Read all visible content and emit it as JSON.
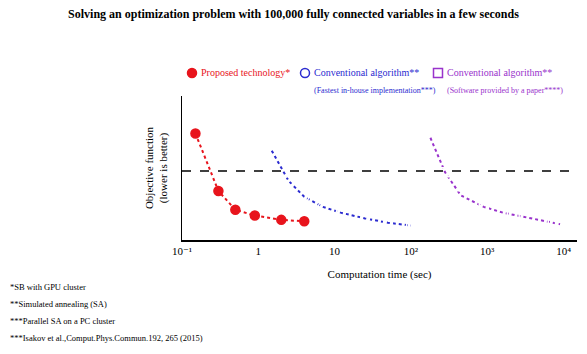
{
  "chart_data": {
    "type": "line",
    "title": "Solving an optimization problem with 100,000 fully connected variables in a few seconds",
    "x_label": "Computation time (sec)",
    "y_label": [
      "Objective function",
      "(lower is better)"
    ],
    "log": "x",
    "grid": false,
    "tick_labels": "x",
    "xlim": [
      0.1,
      15000
    ],
    "ylim": [
      0,
      100
    ],
    "xticks": [
      {
        "value": 0.1,
        "label": "10⁻¹"
      },
      1,
      10,
      {
        "value": 100,
        "label": "10²"
      },
      {
        "value": 1000,
        "label": "10³"
      },
      {
        "value": 10000,
        "label": "10⁴"
      }
    ],
    "series": [
      {
        "name": "Proposed technology*",
        "color": "#e8141c",
        "marker": "circle",
        "line_style": "dotted",
        "x": [
          0.15,
          0.3,
          0.5,
          0.9,
          2,
          4
        ],
        "values": [
          74,
          34,
          21,
          17,
          14,
          13
        ]
      },
      {
        "name": "Conventional algorithm**",
        "note": "(Fastest in-house implementation***)",
        "color": "#2b2bd0",
        "marker": "circle-open",
        "line_style": "dotted",
        "x": [
          1.5,
          2.5,
          4,
          7,
          12,
          25,
          50,
          100
        ],
        "values": [
          62,
          41,
          30,
          23,
          19,
          15,
          12,
          10
        ]
      },
      {
        "name": "Conventional algorithm**",
        "note": "(Software provided by a paper****)",
        "color": "#9933cc",
        "marker": "square-open",
        "line_style": "dotted",
        "x": [
          180,
          280,
          450,
          900,
          1600,
          3000,
          5500,
          9000
        ],
        "values": [
          71,
          47,
          31,
          23,
          19,
          16,
          13,
          11
        ]
      }
    ],
    "reference_line": {
      "y": 48,
      "line_style": "dashed",
      "color": "#000000"
    },
    "footnotes": [
      "*SB with GPU cluster",
      "**Simulated annealing (SA)",
      "***Parallel SA on a PC cluster",
      "***Isakov et al.,Comput.Phys.Commun.192, 265 (2015)"
    ]
  }
}
